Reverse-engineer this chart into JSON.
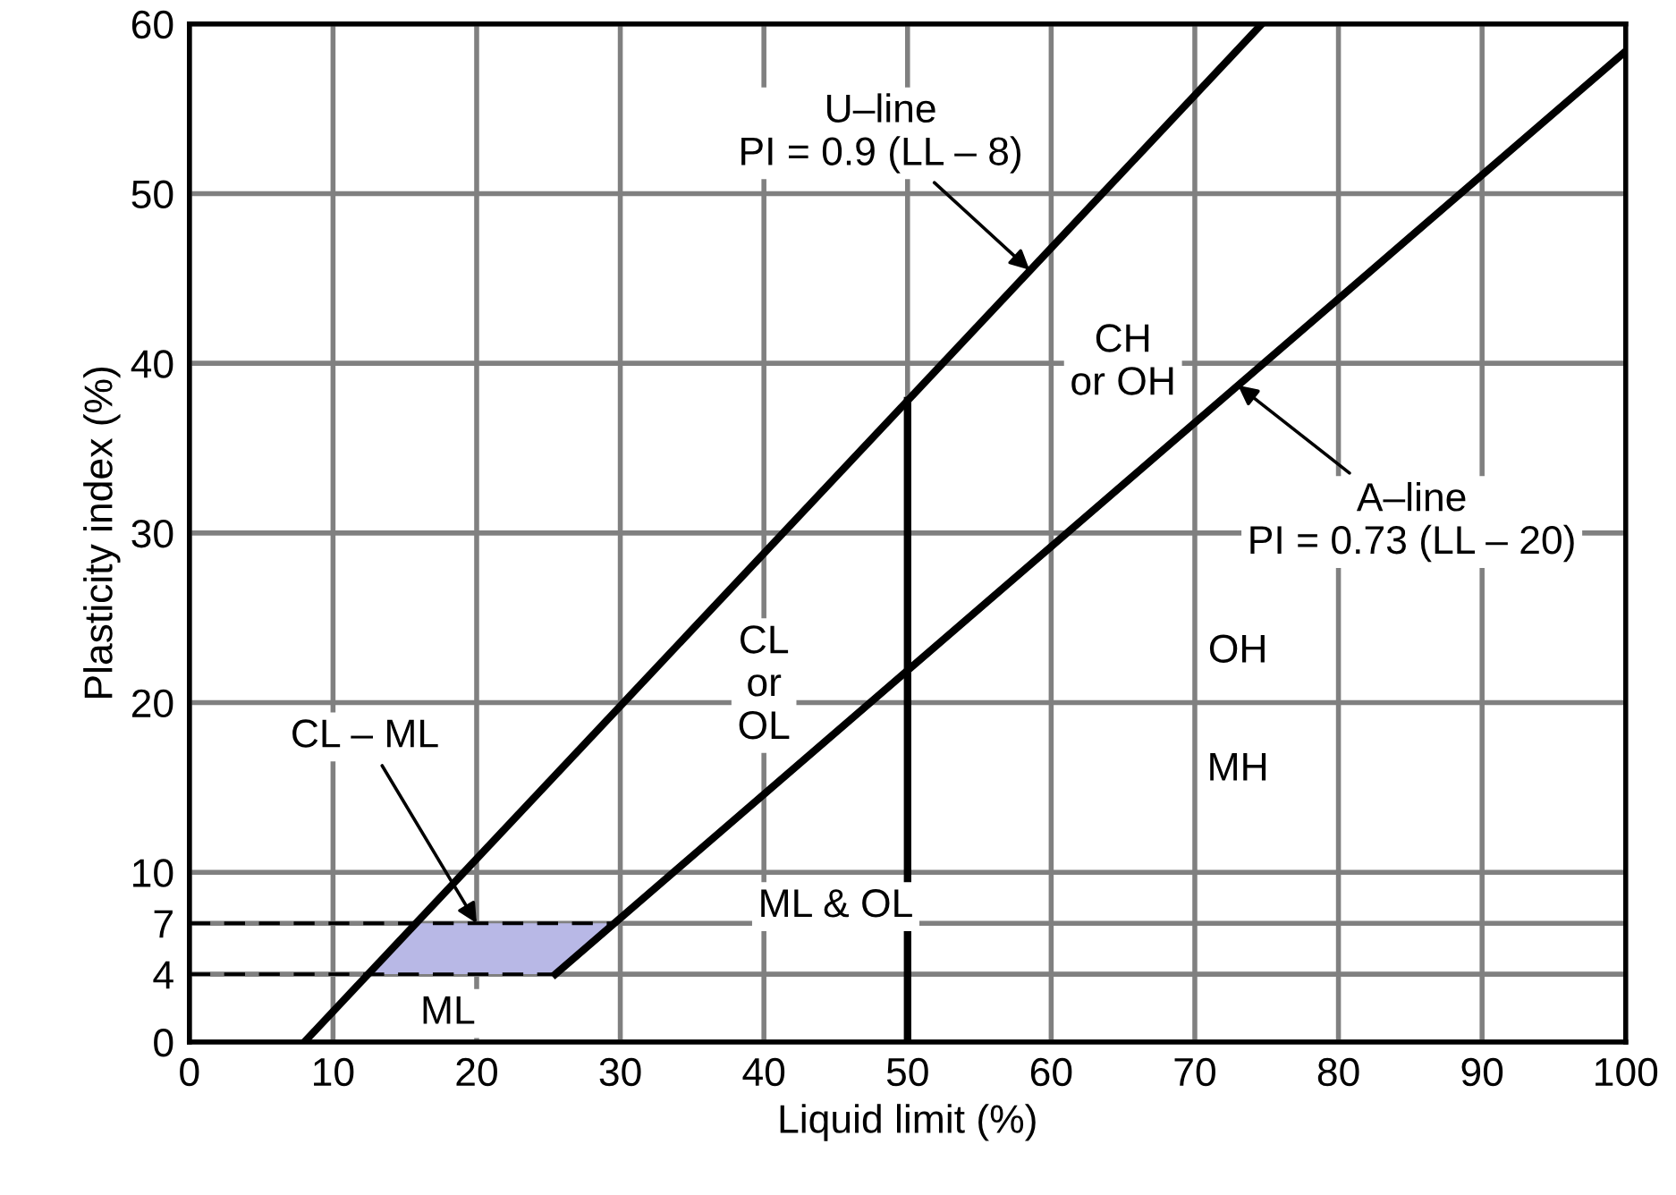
{
  "chart_data": {
    "type": "line",
    "xlabel": "Liquid limit (%)",
    "ylabel": "Plasticity index (%)",
    "xlim": [
      0,
      100
    ],
    "ylim": [
      0,
      60
    ],
    "xticks": [
      0,
      10,
      20,
      30,
      40,
      50,
      60,
      70,
      80,
      90,
      100
    ],
    "yticks": [
      0,
      4,
      7,
      10,
      20,
      30,
      40,
      50,
      60
    ],
    "grid": true,
    "line_style": "solid",
    "bands": [
      {
        "axis": "y",
        "from": 4,
        "to": 7,
        "color": "#b8b8e6"
      }
    ],
    "series": [
      {
        "color": "#000000",
        "x": [
          8,
          74.67
        ],
        "values": [
          0,
          60
        ]
      },
      {
        "color": "#000000",
        "x": [
          25.48,
          100
        ],
        "values": [
          4,
          58.4
        ]
      },
      {
        "color": "#000000",
        "x": [
          50,
          50
        ],
        "values": [
          0,
          37.8
        ]
      },
      {
        "color": "#000000",
        "line_style": "dashed",
        "x": [
          0,
          29.59
        ],
        "values": [
          7,
          7
        ]
      },
      {
        "color": "#000000",
        "line_style": "dashed",
        "x": [
          0,
          25.48
        ],
        "values": [
          4,
          4
        ]
      }
    ],
    "annotations": [
      {
        "text": "U–line\nPI = 0.9 (LL – 8)",
        "x": 58.5,
        "y": 45.5
      },
      {
        "text": "A–line\nPI = 0.73 (LL – 20)",
        "x": 73,
        "y": 38.7
      },
      {
        "text": "CL – ML",
        "x": 20,
        "y": 7
      },
      "CH\nor OH",
      "CL\nor\nOL",
      "OH",
      "MH",
      "ML & OL",
      "ML"
    ]
  }
}
